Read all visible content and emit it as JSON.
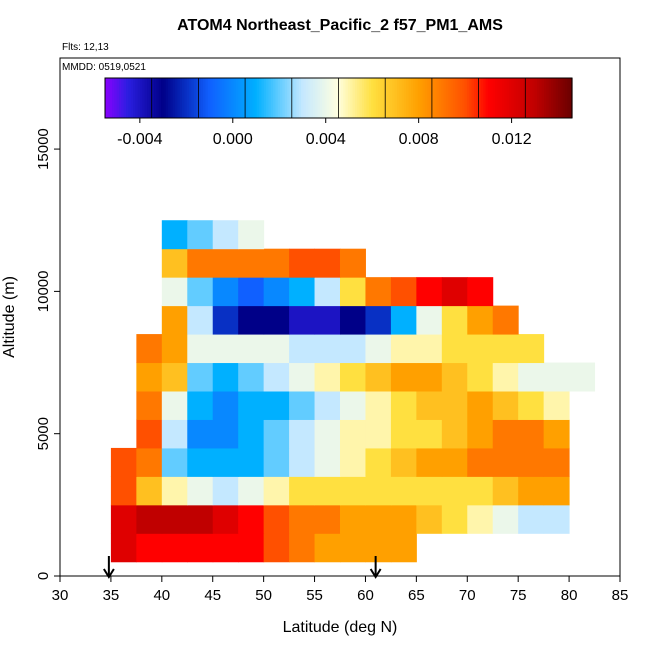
{
  "chart_data": {
    "type": "heatmap",
    "title": "ATOM4 Northeast_Pacific_2 f57_PM1_AMS",
    "annotations": [
      "Flts: 12,13",
      "MMDD: 0519,0521"
    ],
    "x_label": "Latitude (deg N)",
    "y_label": "Altitude (m)",
    "xlim": [
      30,
      85
    ],
    "xticks": [
      30,
      35,
      40,
      45,
      50,
      55,
      60,
      65,
      70,
      75,
      80,
      85
    ],
    "ylim": [
      0,
      18200
    ],
    "yticks": [
      0,
      5000,
      10000,
      15000
    ],
    "lat_edges": [
      35,
      37.5,
      40,
      42.5,
      45,
      47.5,
      50,
      52.5,
      55,
      57.5,
      60,
      62.5,
      65,
      67.5,
      70,
      72.5,
      75,
      77.5,
      80,
      82.5
    ],
    "alt_edges": [
      500,
      1500,
      2500,
      3500,
      4500,
      5500,
      6500,
      7500,
      8500,
      9500,
      10500,
      11500,
      12500
    ],
    "values": [
      [
        0.012,
        0.011,
        0.011,
        0.011,
        0.011,
        0.011,
        0.01,
        0.009,
        0.008,
        0.008,
        0.008,
        0.008,
        null,
        null,
        null,
        null,
        null,
        null,
        null
      ],
      [
        0.012,
        0.013,
        0.013,
        0.013,
        0.012,
        0.011,
        0.01,
        0.009,
        0.009,
        0.008,
        0.008,
        0.008,
        0.007,
        0.006,
        0.005,
        0.004,
        0.003,
        0.003,
        null
      ],
      [
        0.01,
        0.007,
        0.005,
        0.004,
        0.003,
        0.004,
        0.005,
        0.006,
        0.006,
        0.006,
        0.006,
        0.006,
        0.006,
        0.006,
        0.006,
        0.007,
        0.008,
        0.008,
        null
      ],
      [
        0.01,
        0.009,
        0.002,
        0.001,
        0.001,
        0.001,
        0.002,
        0.003,
        0.004,
        0.005,
        0.006,
        0.007,
        0.008,
        0.008,
        0.009,
        0.009,
        0.009,
        0.009,
        null
      ],
      [
        null,
        0.01,
        0.003,
        0.0,
        0.0,
        0.001,
        0.002,
        0.003,
        0.004,
        0.005,
        0.005,
        0.006,
        0.006,
        0.007,
        0.008,
        0.009,
        0.009,
        0.008,
        null
      ],
      [
        null,
        0.009,
        0.004,
        0.001,
        0.0,
        0.001,
        0.001,
        0.002,
        0.003,
        0.004,
        0.005,
        0.006,
        0.007,
        0.007,
        0.008,
        0.007,
        0.006,
        0.005,
        null
      ],
      [
        null,
        0.008,
        0.007,
        0.002,
        0.001,
        0.002,
        0.003,
        0.004,
        0.005,
        0.006,
        0.007,
        0.008,
        0.008,
        0.007,
        0.006,
        0.005,
        0.004,
        0.004,
        0.004
      ],
      [
        null,
        0.009,
        0.008,
        0.004,
        0.004,
        0.004,
        0.004,
        0.003,
        0.003,
        0.003,
        0.004,
        0.005,
        0.005,
        0.006,
        0.006,
        0.006,
        0.006,
        null,
        null
      ],
      [
        null,
        null,
        0.008,
        0.003,
        -0.002,
        -0.003,
        -0.003,
        -0.004,
        -0.004,
        -0.003,
        -0.002,
        0.001,
        0.004,
        0.006,
        0.008,
        0.009,
        null,
        null,
        null
      ],
      [
        null,
        null,
        0.004,
        0.002,
        0.0,
        -0.001,
        0.0,
        0.001,
        0.003,
        0.006,
        0.009,
        0.01,
        0.011,
        0.012,
        0.011,
        null,
        null,
        null,
        null
      ],
      [
        null,
        null,
        0.007,
        0.009,
        0.009,
        0.009,
        0.009,
        0.01,
        0.01,
        0.009,
        null,
        null,
        null,
        null,
        null,
        null,
        null,
        null,
        null
      ],
      [
        null,
        null,
        0.001,
        0.002,
        0.003,
        0.004,
        null,
        null,
        null,
        null,
        null,
        null,
        null,
        null,
        null,
        null,
        null,
        null,
        null
      ]
    ],
    "colorbar_lim": [
      -0.0055,
      0.0146
    ],
    "colorbar_ticks": [
      -0.004,
      {
        "value": 0,
        "label": "0.000"
      },
      0.004,
      0.008,
      0.012
    ],
    "colorscale": [
      [
        -0.0055,
        "#8a00ff"
      ],
      [
        -0.0045,
        "#2a1ee0"
      ],
      [
        -0.003,
        "#000088"
      ],
      [
        -0.001,
        "#1060ff"
      ],
      [
        0.001,
        "#00b0ff"
      ],
      [
        0.003,
        "#c4e8ff"
      ],
      [
        0.0045,
        "#ffffe0"
      ],
      [
        0.006,
        "#ffe040"
      ],
      [
        0.008,
        "#ffa000"
      ],
      [
        0.01,
        "#ff5000"
      ],
      [
        0.011,
        "#ff0000"
      ],
      [
        0.013,
        "#c00000"
      ],
      [
        0.0146,
        "#6a0000"
      ]
    ],
    "arrows": [
      34.8,
      61
    ]
  }
}
